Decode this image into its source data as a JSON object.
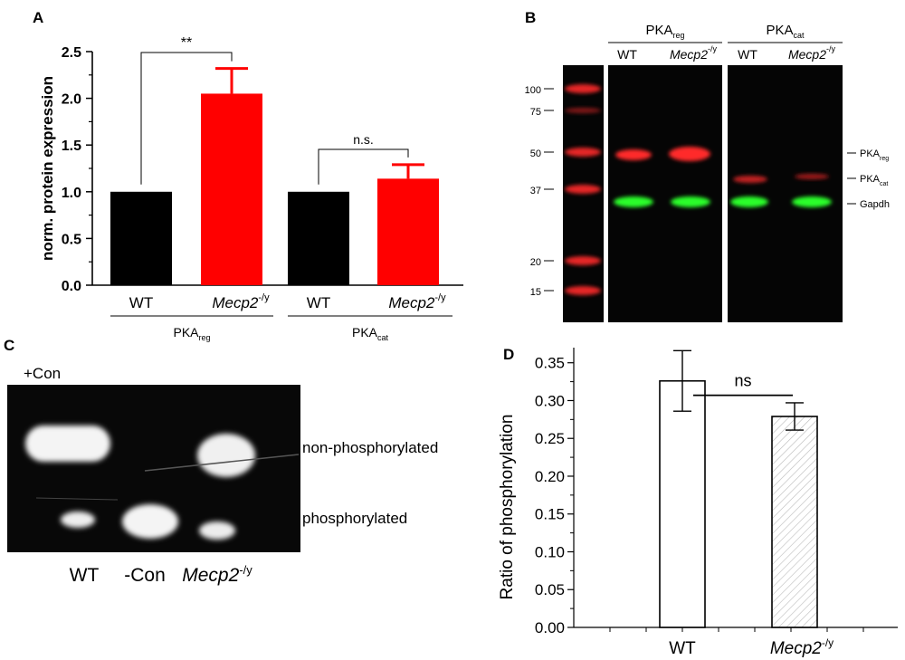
{
  "panel_labels": {
    "a": "A",
    "b": "B",
    "c": "C",
    "d": "D"
  },
  "colors": {
    "wt_bar": "#000000",
    "mecp2_bar": "#ff0000",
    "blot_red": "#ff2a2a",
    "blot_green": "#2aff2a"
  },
  "chart_data": [
    {
      "panel": "A",
      "type": "bar",
      "ylabel": "norm. protein expression",
      "ylim": [
        0,
        2.5
      ],
      "yticks": [
        "0.0",
        "0.5",
        "1.0",
        "1.5",
        "2.0",
        "2.5"
      ],
      "categories": [
        "WT",
        "Mecp2",
        "WT",
        "Mecp2"
      ],
      "category_superscripts": [
        "",
        "-/y",
        "",
        "-/y"
      ],
      "groups": [
        {
          "label": "PKA",
          "sub": "reg"
        },
        {
          "label": "PKA",
          "sub": "cat"
        }
      ],
      "values": [
        1.0,
        2.05,
        1.0,
        1.14
      ],
      "errors": [
        0,
        0.27,
        0,
        0.15
      ],
      "bar_colors": [
        "#000000",
        "#ff0000",
        "#000000",
        "#ff0000"
      ],
      "annotations": [
        {
          "text": "**",
          "between": [
            0,
            1
          ]
        },
        {
          "text": "n.s.",
          "between": [
            2,
            3
          ]
        }
      ]
    },
    {
      "panel": "D",
      "type": "bar",
      "ylabel": "Ratio of phosphorylation",
      "ylim": [
        0,
        0.37
      ],
      "yticks": [
        "0.00",
        "0.05",
        "0.10",
        "0.15",
        "0.20",
        "0.25",
        "0.30",
        "0.35"
      ],
      "categories": [
        "WT",
        "Mecp2"
      ],
      "category_superscripts": [
        "",
        "-/y"
      ],
      "values": [
        0.326,
        0.279
      ],
      "errors": [
        0.04,
        0.018
      ],
      "bar_fills": [
        "white",
        "hatched"
      ],
      "annotations": [
        {
          "text": "ns",
          "between": [
            0,
            1
          ]
        }
      ]
    }
  ],
  "blot_b": {
    "group_headers": [
      {
        "label": "PKA",
        "sub": "reg"
      },
      {
        "label": "PKA",
        "sub": "cat"
      }
    ],
    "lane_labels": [
      {
        "text": "WT",
        "sup": ""
      },
      {
        "text": "Mecp2",
        "sup": "-/y"
      },
      {
        "text": "WT",
        "sup": ""
      },
      {
        "text": "Mecp2",
        "sup": "-/y"
      }
    ],
    "marker_values": [
      "100",
      "75",
      "50",
      "37",
      "20",
      "15"
    ],
    "band_labels": [
      {
        "label": "PKA",
        "sub": "reg"
      },
      {
        "label": "PKA",
        "sub": "cat"
      },
      {
        "label": "Gapdh",
        "sub": ""
      }
    ]
  },
  "blot_c": {
    "control_label": "+Con",
    "row_labels": [
      "non-phosphorylated",
      "phosphorylated"
    ],
    "lane_labels": [
      {
        "text": "WT",
        "sup": ""
      },
      {
        "text": "-Con",
        "sup": ""
      },
      {
        "text": "Mecp2",
        "sup": "-/y"
      }
    ]
  }
}
